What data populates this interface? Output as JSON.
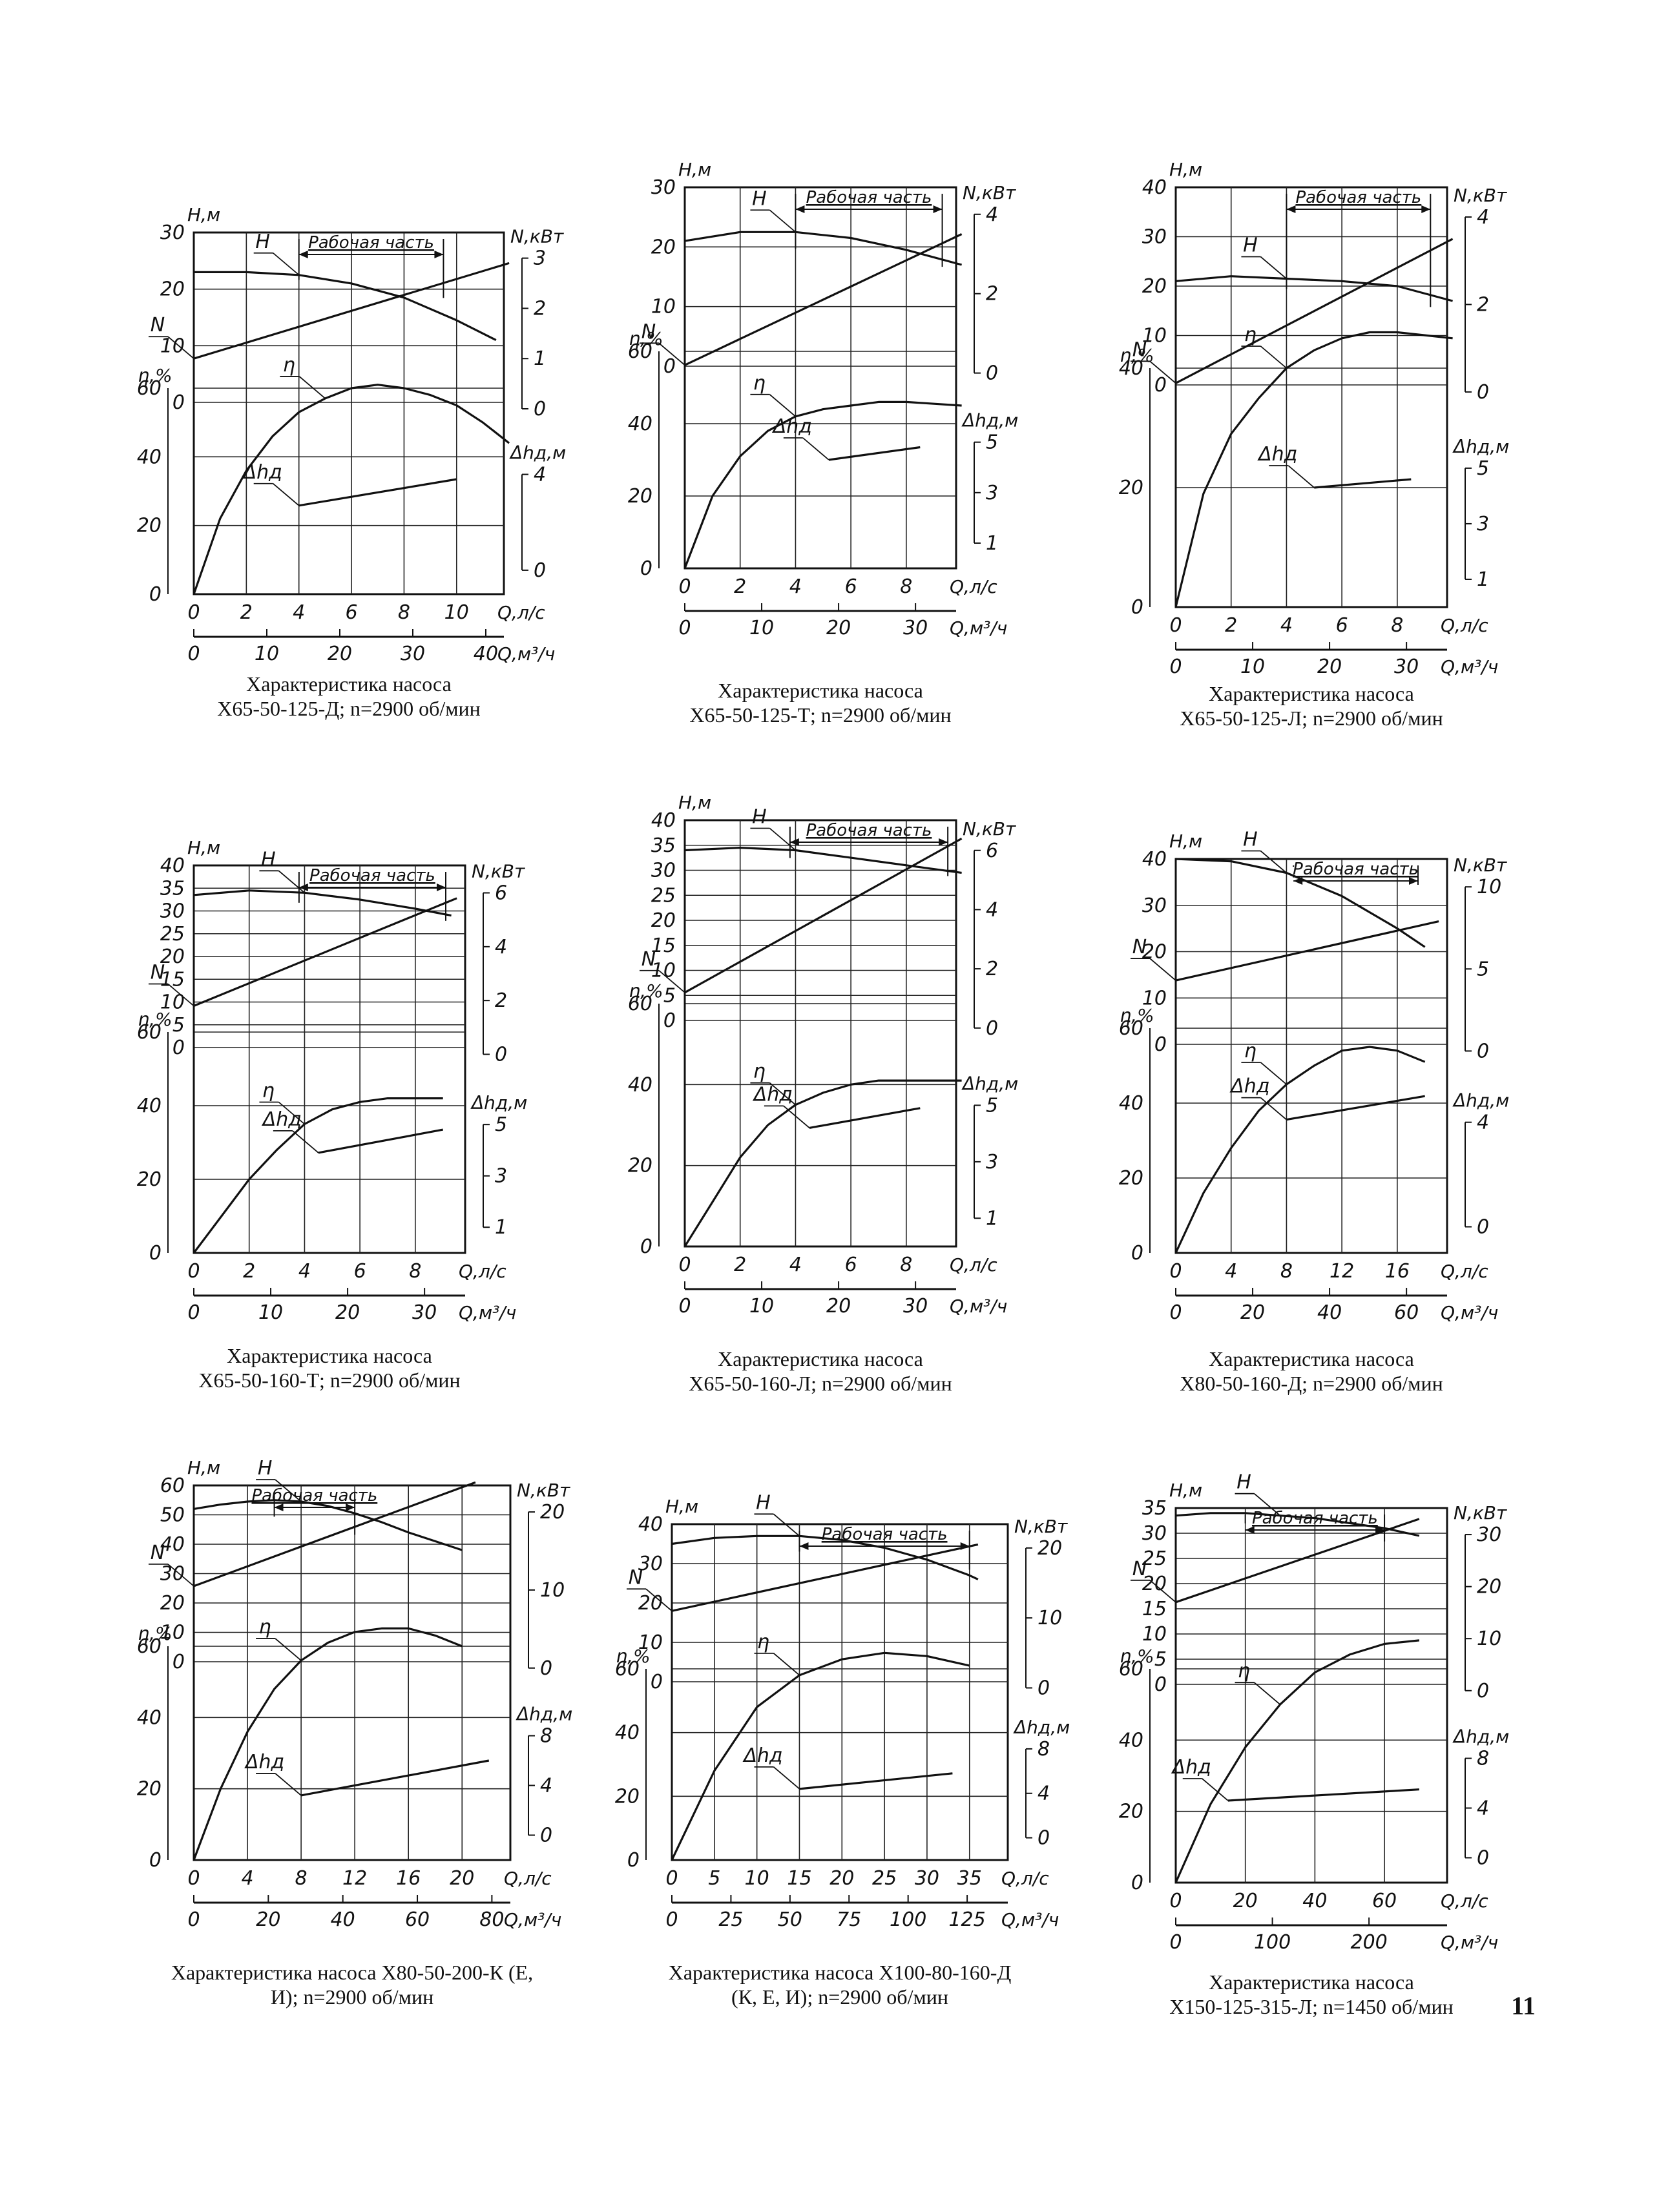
{
  "page": {
    "number": "11"
  },
  "common": {
    "left_axis_top_unit": "H,м",
    "left_axis_bottom_unit": "η,%",
    "power_unit": "N,кВт",
    "npsh_unit": "Δhд,м",
    "npsh_unit_short": "Δhд",
    "q_ls_unit": "Q,л/с",
    "q_m3h_unit": "Q,м³/ч",
    "working_range": "Рабочая часть",
    "curve_labels": {
      "head": "H",
      "power": "N",
      "efficiency": "η",
      "npsh": "Δhд"
    }
  },
  "chart_data": [
    {
      "type": "line",
      "caption_line1": "Характеристика насоса",
      "caption_line2": "Х65-50-125-Д; n=2900 об/мин",
      "q_ls_ticks": [
        0,
        2,
        4,
        6,
        8,
        10
      ],
      "q_m3h_ticks": [
        0,
        10,
        20,
        30,
        40
      ],
      "head_ticks": [
        0,
        10,
        20,
        30
      ],
      "eff_ticks": [
        0,
        20,
        40,
        60
      ],
      "power_ticks": [
        0,
        1,
        2,
        3
      ],
      "npsh_ticks": [
        0,
        4
      ],
      "working_range_q": [
        4,
        9.5
      ],
      "series": [
        {
          "name": "H",
          "x": [
            0,
            2,
            4,
            6,
            8,
            10,
            11.5
          ],
          "y": [
            23,
            23,
            22.5,
            21,
            18.5,
            14.5,
            11
          ]
        },
        {
          "name": "N",
          "x": [
            0,
            12
          ],
          "y": [
            1.0,
            2.9
          ]
        },
        {
          "name": "η",
          "x": [
            0,
            1,
            2,
            3,
            4,
            5,
            6,
            7,
            8,
            9,
            10,
            11,
            12
          ],
          "y": [
            0,
            22,
            36,
            46,
            53,
            57,
            60,
            61,
            60,
            58,
            55,
            50,
            44
          ]
        },
        {
          "name": "Δhд",
          "x": [
            4,
            10
          ],
          "y": [
            2.7,
            3.8
          ]
        }
      ]
    },
    {
      "type": "line",
      "caption_line1": "Характеристика насоса",
      "caption_line2": "Х65-50-125-Т; n=2900 об/мин",
      "q_ls_ticks": [
        0,
        2,
        4,
        6,
        8
      ],
      "q_m3h_ticks": [
        0,
        10,
        20,
        30
      ],
      "head_ticks": [
        0,
        10,
        20,
        30
      ],
      "eff_ticks": [
        0,
        20,
        40,
        60
      ],
      "power_ticks": [
        0,
        2,
        4
      ],
      "npsh_ticks": [
        1,
        3,
        5
      ],
      "working_range_q": [
        4,
        9.3
      ],
      "series": [
        {
          "name": "H",
          "x": [
            0,
            2,
            4,
            6,
            8,
            10
          ],
          "y": [
            21,
            22.5,
            22.5,
            21.5,
            19.5,
            17
          ]
        },
        {
          "name": "N",
          "x": [
            0,
            10
          ],
          "y": [
            0.2,
            3.5
          ]
        },
        {
          "name": "η",
          "x": [
            0,
            1,
            2,
            3,
            4,
            5,
            6,
            7,
            8,
            9,
            10
          ],
          "y": [
            0,
            20,
            31,
            38,
            42,
            44,
            45,
            46,
            46,
            45.5,
            45
          ]
        },
        {
          "name": "Δhд",
          "x": [
            5.2,
            8.5
          ],
          "y": [
            4.3,
            4.8
          ]
        }
      ]
    },
    {
      "type": "line",
      "caption_line1": "Характеристика насоса",
      "caption_line2": "Х65-50-125-Л; n=2900 об/мин",
      "q_ls_ticks": [
        0,
        2,
        4,
        6,
        8
      ],
      "q_m3h_ticks": [
        0,
        10,
        20,
        30
      ],
      "head_ticks": [
        0,
        10,
        20,
        30,
        40
      ],
      "eff_ticks": [
        0,
        20,
        40
      ],
      "power_ticks": [
        0,
        2,
        4
      ],
      "npsh_ticks": [
        1,
        3,
        5
      ],
      "working_range_q": [
        4,
        9.2
      ],
      "series": [
        {
          "name": "H",
          "x": [
            0,
            2,
            4,
            6,
            8,
            10
          ],
          "y": [
            21,
            22,
            21.5,
            21,
            20,
            17
          ]
        },
        {
          "name": "N",
          "x": [
            0,
            10
          ],
          "y": [
            0.2,
            3.5
          ]
        },
        {
          "name": "η",
          "x": [
            0,
            1,
            2,
            3,
            4,
            5,
            6,
            7,
            8,
            9,
            10
          ],
          "y": [
            0,
            19,
            29,
            35,
            40,
            43,
            45,
            46,
            46,
            45.5,
            45
          ]
        },
        {
          "name": "Δhд",
          "x": [
            5,
            8.5
          ],
          "y": [
            4.3,
            4.6
          ]
        }
      ]
    },
    {
      "type": "line",
      "caption_line1": "Характеристика насоса",
      "caption_line2": "Х65-50-160-Т; n=2900 об/мин",
      "q_ls_ticks": [
        0,
        2,
        4,
        6,
        8
      ],
      "q_m3h_ticks": [
        0,
        10,
        20,
        30
      ],
      "head_ticks": [
        0,
        5,
        10,
        15,
        20,
        25,
        30,
        35,
        40
      ],
      "eff_ticks": [
        0,
        20,
        40,
        60
      ],
      "power_ticks": [
        0,
        2,
        4,
        6
      ],
      "npsh_ticks": [
        1,
        3,
        5
      ],
      "working_range_q": [
        3.8,
        9.1
      ],
      "series": [
        {
          "name": "H",
          "x": [
            0,
            2,
            4,
            6,
            8,
            9.3
          ],
          "y": [
            33.5,
            34.5,
            34,
            32.5,
            30.5,
            29
          ]
        },
        {
          "name": "N",
          "x": [
            0,
            9.5
          ],
          "y": [
            1.8,
            5.8
          ]
        },
        {
          "name": "η",
          "x": [
            0,
            1,
            2,
            3,
            4,
            5,
            6,
            7,
            8,
            9
          ],
          "y": [
            0,
            10,
            20,
            28,
            35,
            39,
            41,
            42,
            42,
            42
          ]
        },
        {
          "name": "Δhд",
          "x": [
            4.5,
            9
          ],
          "y": [
            3.9,
            4.8
          ]
        }
      ]
    },
    {
      "type": "line",
      "caption_line1": "Характеристика насоса",
      "caption_line2": "Х65-50-160-Л; n=2900 об/мин",
      "q_ls_ticks": [
        0,
        2,
        4,
        6,
        8
      ],
      "q_m3h_ticks": [
        0,
        10,
        20,
        30
      ],
      "head_ticks": [
        0,
        5,
        10,
        15,
        20,
        25,
        30,
        35,
        40
      ],
      "eff_ticks": [
        0,
        20,
        40,
        60
      ],
      "power_ticks": [
        0,
        2,
        4,
        6
      ],
      "npsh_ticks": [
        1,
        3,
        5
      ],
      "working_range_q": [
        3.8,
        9.5
      ],
      "series": [
        {
          "name": "H",
          "x": [
            0,
            2,
            4,
            6,
            8,
            10
          ],
          "y": [
            34,
            34.5,
            34,
            32.5,
            31,
            29.5
          ]
        },
        {
          "name": "N",
          "x": [
            0,
            10
          ],
          "y": [
            1.2,
            6.4
          ]
        },
        {
          "name": "η",
          "x": [
            0,
            1,
            2,
            3,
            4,
            5,
            6,
            7,
            8,
            9,
            10
          ],
          "y": [
            0,
            11,
            22,
            30,
            35,
            38,
            40,
            41,
            41,
            41,
            41
          ]
        },
        {
          "name": "Δhд",
          "x": [
            4.5,
            8.5
          ],
          "y": [
            4.2,
            4.9
          ]
        }
      ]
    },
    {
      "type": "line",
      "caption_line1": "Характеристика насоса",
      "caption_line2": "Х80-50-160-Д; n=2900 об/мин",
      "q_ls_ticks": [
        0,
        4,
        8,
        12,
        16
      ],
      "q_m3h_ticks": [
        0,
        20,
        40,
        60
      ],
      "head_ticks": [
        0,
        10,
        20,
        30,
        40
      ],
      "eff_ticks": [
        0,
        20,
        40,
        60
      ],
      "power_ticks": [
        0,
        5,
        10
      ],
      "npsh_ticks": [
        0,
        4
      ],
      "working_range_q": [
        8.5,
        17.5
      ],
      "series": [
        {
          "name": "H",
          "x": [
            0,
            4,
            8,
            12,
            16,
            18
          ],
          "y": [
            40,
            39.5,
            37,
            32,
            25,
            21
          ]
        },
        {
          "name": "N",
          "x": [
            0,
            19
          ],
          "y": [
            4.3,
            7.9
          ]
        },
        {
          "name": "η",
          "x": [
            0,
            2,
            4,
            6,
            8,
            10,
            12,
            14,
            16,
            18
          ],
          "y": [
            0,
            16,
            28,
            38,
            45,
            50,
            54,
            55,
            54,
            51
          ]
        },
        {
          "name": "Δhд",
          "x": [
            8,
            18
          ],
          "y": [
            4.1,
            5.0
          ]
        }
      ]
    },
    {
      "type": "line",
      "caption_line1": "Характеристика насоса Х80-50-200-К (Е,",
      "caption_line2": "И); n=2900 об/мин",
      "q_ls_ticks": [
        0,
        4,
        8,
        12,
        16,
        20
      ],
      "q_m3h_ticks": [
        0,
        20,
        40,
        60,
        80
      ],
      "head_ticks": [
        0,
        10,
        20,
        30,
        40,
        50,
        60
      ],
      "eff_ticks": [
        0,
        20,
        40,
        60
      ],
      "power_ticks": [
        0,
        10,
        20
      ],
      "npsh_ticks": [
        0,
        4,
        8
      ],
      "working_range_q": [
        6,
        12
      ],
      "series": [
        {
          "name": "H",
          "x": [
            0,
            2,
            4,
            6,
            8,
            10,
            12,
            14,
            16,
            18,
            20
          ],
          "y": [
            52,
            53.5,
            54.5,
            55,
            54.5,
            53,
            50.5,
            47.5,
            44,
            41,
            38
          ]
        },
        {
          "name": "N",
          "x": [
            0,
            21
          ],
          "y": [
            10.5,
            23.8
          ]
        },
        {
          "name": "η",
          "x": [
            0,
            2,
            4,
            6,
            8,
            10,
            12,
            14,
            16,
            18,
            20
          ],
          "y": [
            0,
            20,
            36,
            48,
            56,
            61,
            64,
            65,
            65,
            63,
            60
          ]
        },
        {
          "name": "Δhд",
          "x": [
            8,
            22
          ],
          "y": [
            3.2,
            6.0
          ]
        }
      ]
    },
    {
      "type": "line",
      "caption_line1": "Характеристика насоса Х100-80-160-Д",
      "caption_line2": "(К, Е, И); n=2900 об/мин",
      "q_ls_ticks": [
        0,
        5,
        10,
        15,
        20,
        25,
        30,
        35
      ],
      "q_m3h_ticks": [
        0,
        25,
        50,
        75,
        100,
        125
      ],
      "head_ticks": [
        0,
        10,
        20,
        30,
        40
      ],
      "eff_ticks": [
        0,
        20,
        40,
        60
      ],
      "power_ticks": [
        0,
        10,
        20
      ],
      "npsh_ticks": [
        0,
        4,
        8
      ],
      "working_range_q": [
        15,
        35
      ],
      "series": [
        {
          "name": "H",
          "x": [
            0,
            5,
            10,
            15,
            20,
            25,
            30,
            35,
            36
          ],
          "y": [
            35,
            36.5,
            37,
            37,
            36,
            34,
            31,
            27,
            26
          ]
        },
        {
          "name": "N",
          "x": [
            0,
            36
          ],
          "y": [
            11,
            20.5
          ]
        },
        {
          "name": "η",
          "x": [
            0,
            5,
            10,
            15,
            20,
            25,
            30,
            35
          ],
          "y": [
            0,
            28,
            48,
            58,
            63,
            65,
            64,
            61
          ]
        },
        {
          "name": "Δhд",
          "x": [
            15,
            33
          ],
          "y": [
            4.4,
            5.8
          ]
        }
      ]
    },
    {
      "type": "line",
      "caption_line1": "Характеристика насоса",
      "caption_line2": "Х150-125-315-Л; n=1450 об/мин",
      "q_ls_ticks": [
        0,
        20,
        40,
        60
      ],
      "q_m3h_ticks": [
        0,
        100,
        200
      ],
      "head_ticks": [
        0,
        5,
        10,
        15,
        20,
        25,
        30,
        35
      ],
      "eff_ticks": [
        0,
        20,
        40,
        60
      ],
      "power_ticks": [
        0,
        10,
        20,
        30
      ],
      "npsh_ticks": [
        0,
        4,
        8
      ],
      "working_range_q": [
        20,
        60
      ],
      "series": [
        {
          "name": "H",
          "x": [
            0,
            10,
            20,
            30,
            40,
            50,
            60,
            70
          ],
          "y": [
            33.5,
            34,
            34,
            33.5,
            33,
            32,
            31,
            29.5
          ]
        },
        {
          "name": "N",
          "x": [
            0,
            70
          ],
          "y": [
            17,
            33
          ]
        },
        {
          "name": "η",
          "x": [
            0,
            10,
            20,
            30,
            40,
            50,
            60,
            70
          ],
          "y": [
            0,
            22,
            38,
            50,
            59,
            64,
            67,
            68
          ]
        },
        {
          "name": "Δhд",
          "x": [
            15,
            70
          ],
          "y": [
            4.6,
            5.5
          ]
        }
      ]
    }
  ]
}
